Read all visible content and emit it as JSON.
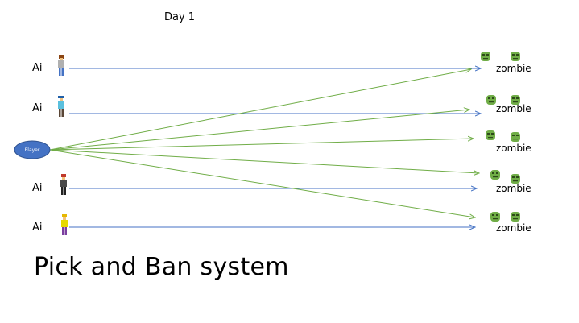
{
  "header": {
    "day_label": "Day 1"
  },
  "player": {
    "label": "Player",
    "color": "#4472c4"
  },
  "ai_rows": [
    {
      "label": "Ai"
    },
    {
      "label": "Ai"
    },
    {
      "label": "Ai"
    },
    {
      "label": "Ai"
    }
  ],
  "zombie_groups": [
    {
      "label": "zombie"
    },
    {
      "label": "zombie"
    },
    {
      "label": "zombie"
    },
    {
      "label": "zombie"
    },
    {
      "label": "zombie"
    }
  ],
  "footer": {
    "title": "Pick and Ban system"
  },
  "colors": {
    "ai_arrow": "#4472c4",
    "player_arrow": "#70ad47",
    "zombie": "#70ad47"
  }
}
